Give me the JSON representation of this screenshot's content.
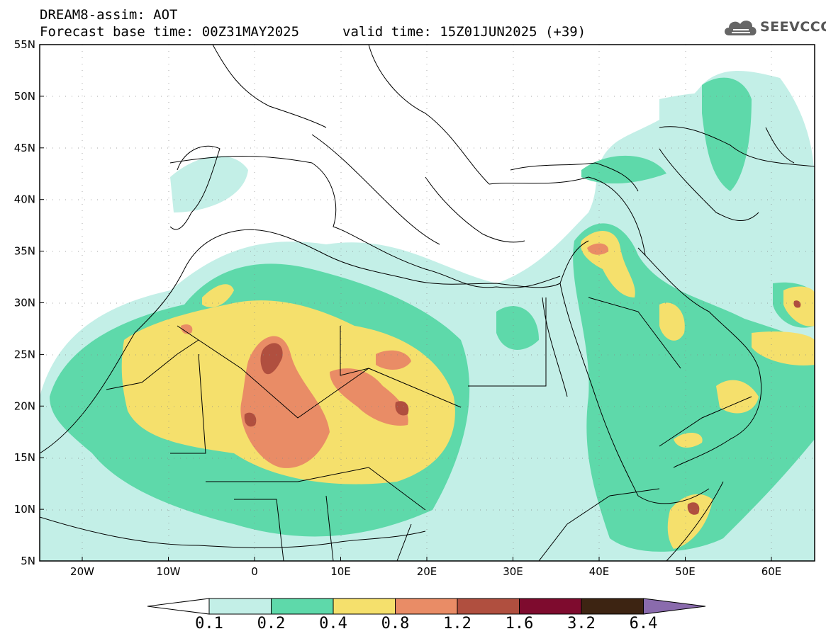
{
  "header": {
    "title_line1": "DREAM8-assim: AOT",
    "title_line2": "Forecast base time: 00Z31MAY2025",
    "valid_time": "valid time: 15Z01JUN2025 (+39)",
    "logo_text": "SEEVCCC"
  },
  "map": {
    "lon_labels": [
      "20W",
      "10W",
      "0",
      "10E",
      "20E",
      "30E",
      "40E",
      "50E",
      "60E"
    ],
    "lat_labels": [
      "55N",
      "50N",
      "45N",
      "40N",
      "35N",
      "30N",
      "25N",
      "20N",
      "15N",
      "10N",
      "5N"
    ]
  },
  "colorbar": {
    "labels": [
      "0.1",
      "0.2",
      "0.4",
      "0.8",
      "1.2",
      "1.6",
      "3.2",
      "6.4"
    ],
    "colors": [
      "#ffffff",
      "#c3efe7",
      "#5ed9aa",
      "#f5e06c",
      "#e98c66",
      "#b04f3f",
      "#7e0b2e",
      "#3d2412",
      "#8a6bad"
    ]
  },
  "colors": {
    "c1": "#c3efe7",
    "c2": "#5ed9aa",
    "c3": "#f5e06c",
    "c4": "#e98c66",
    "c5": "#b04f3f"
  }
}
